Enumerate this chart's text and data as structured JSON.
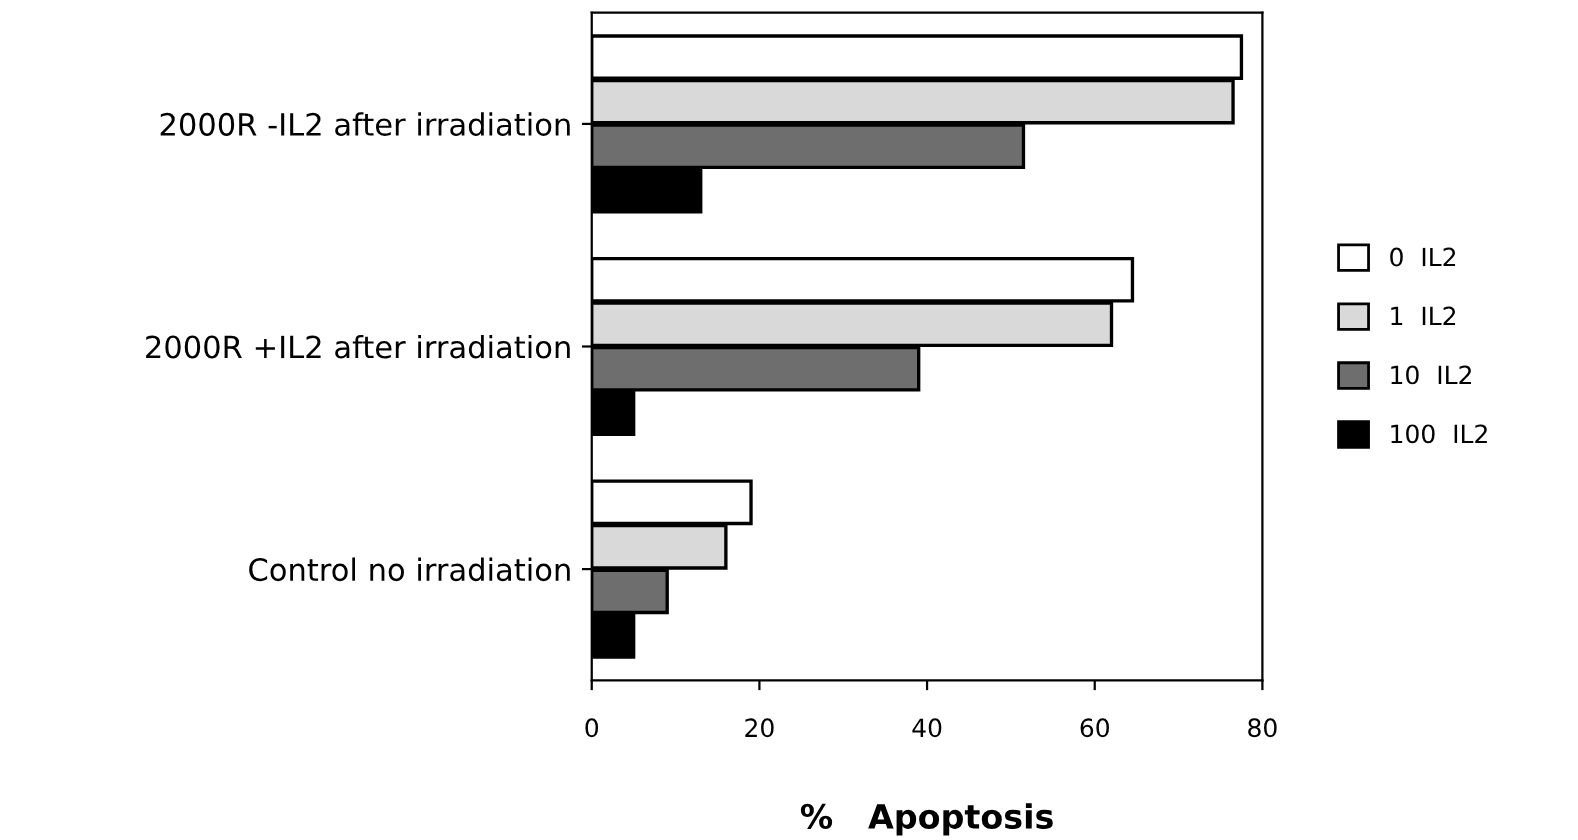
{
  "chart_data": {
    "type": "bar",
    "orientation": "horizontal",
    "categories": [
      "2000R -IL2 after irradiation",
      "2000R +IL2 after irradiation",
      "Control no irradiation"
    ],
    "series": [
      {
        "name": "0  IL2",
        "color": "#ffffff",
        "values": [
          77.5,
          64.5,
          19
        ]
      },
      {
        "name": "1  IL2",
        "color": "#d9d9d9",
        "values": [
          76.5,
          62,
          16
        ]
      },
      {
        "name": "10  IL2",
        "color": "#6e6e6e",
        "values": [
          51.5,
          39,
          9
        ]
      },
      {
        "name": "100  IL2",
        "color": "#000000",
        "values": [
          13,
          5,
          5
        ]
      }
    ],
    "xlabel": "%   Apoptosis",
    "xlim": [
      0,
      80
    ],
    "xticks": [
      0,
      20,
      40,
      60,
      80
    ],
    "legend": "right"
  }
}
